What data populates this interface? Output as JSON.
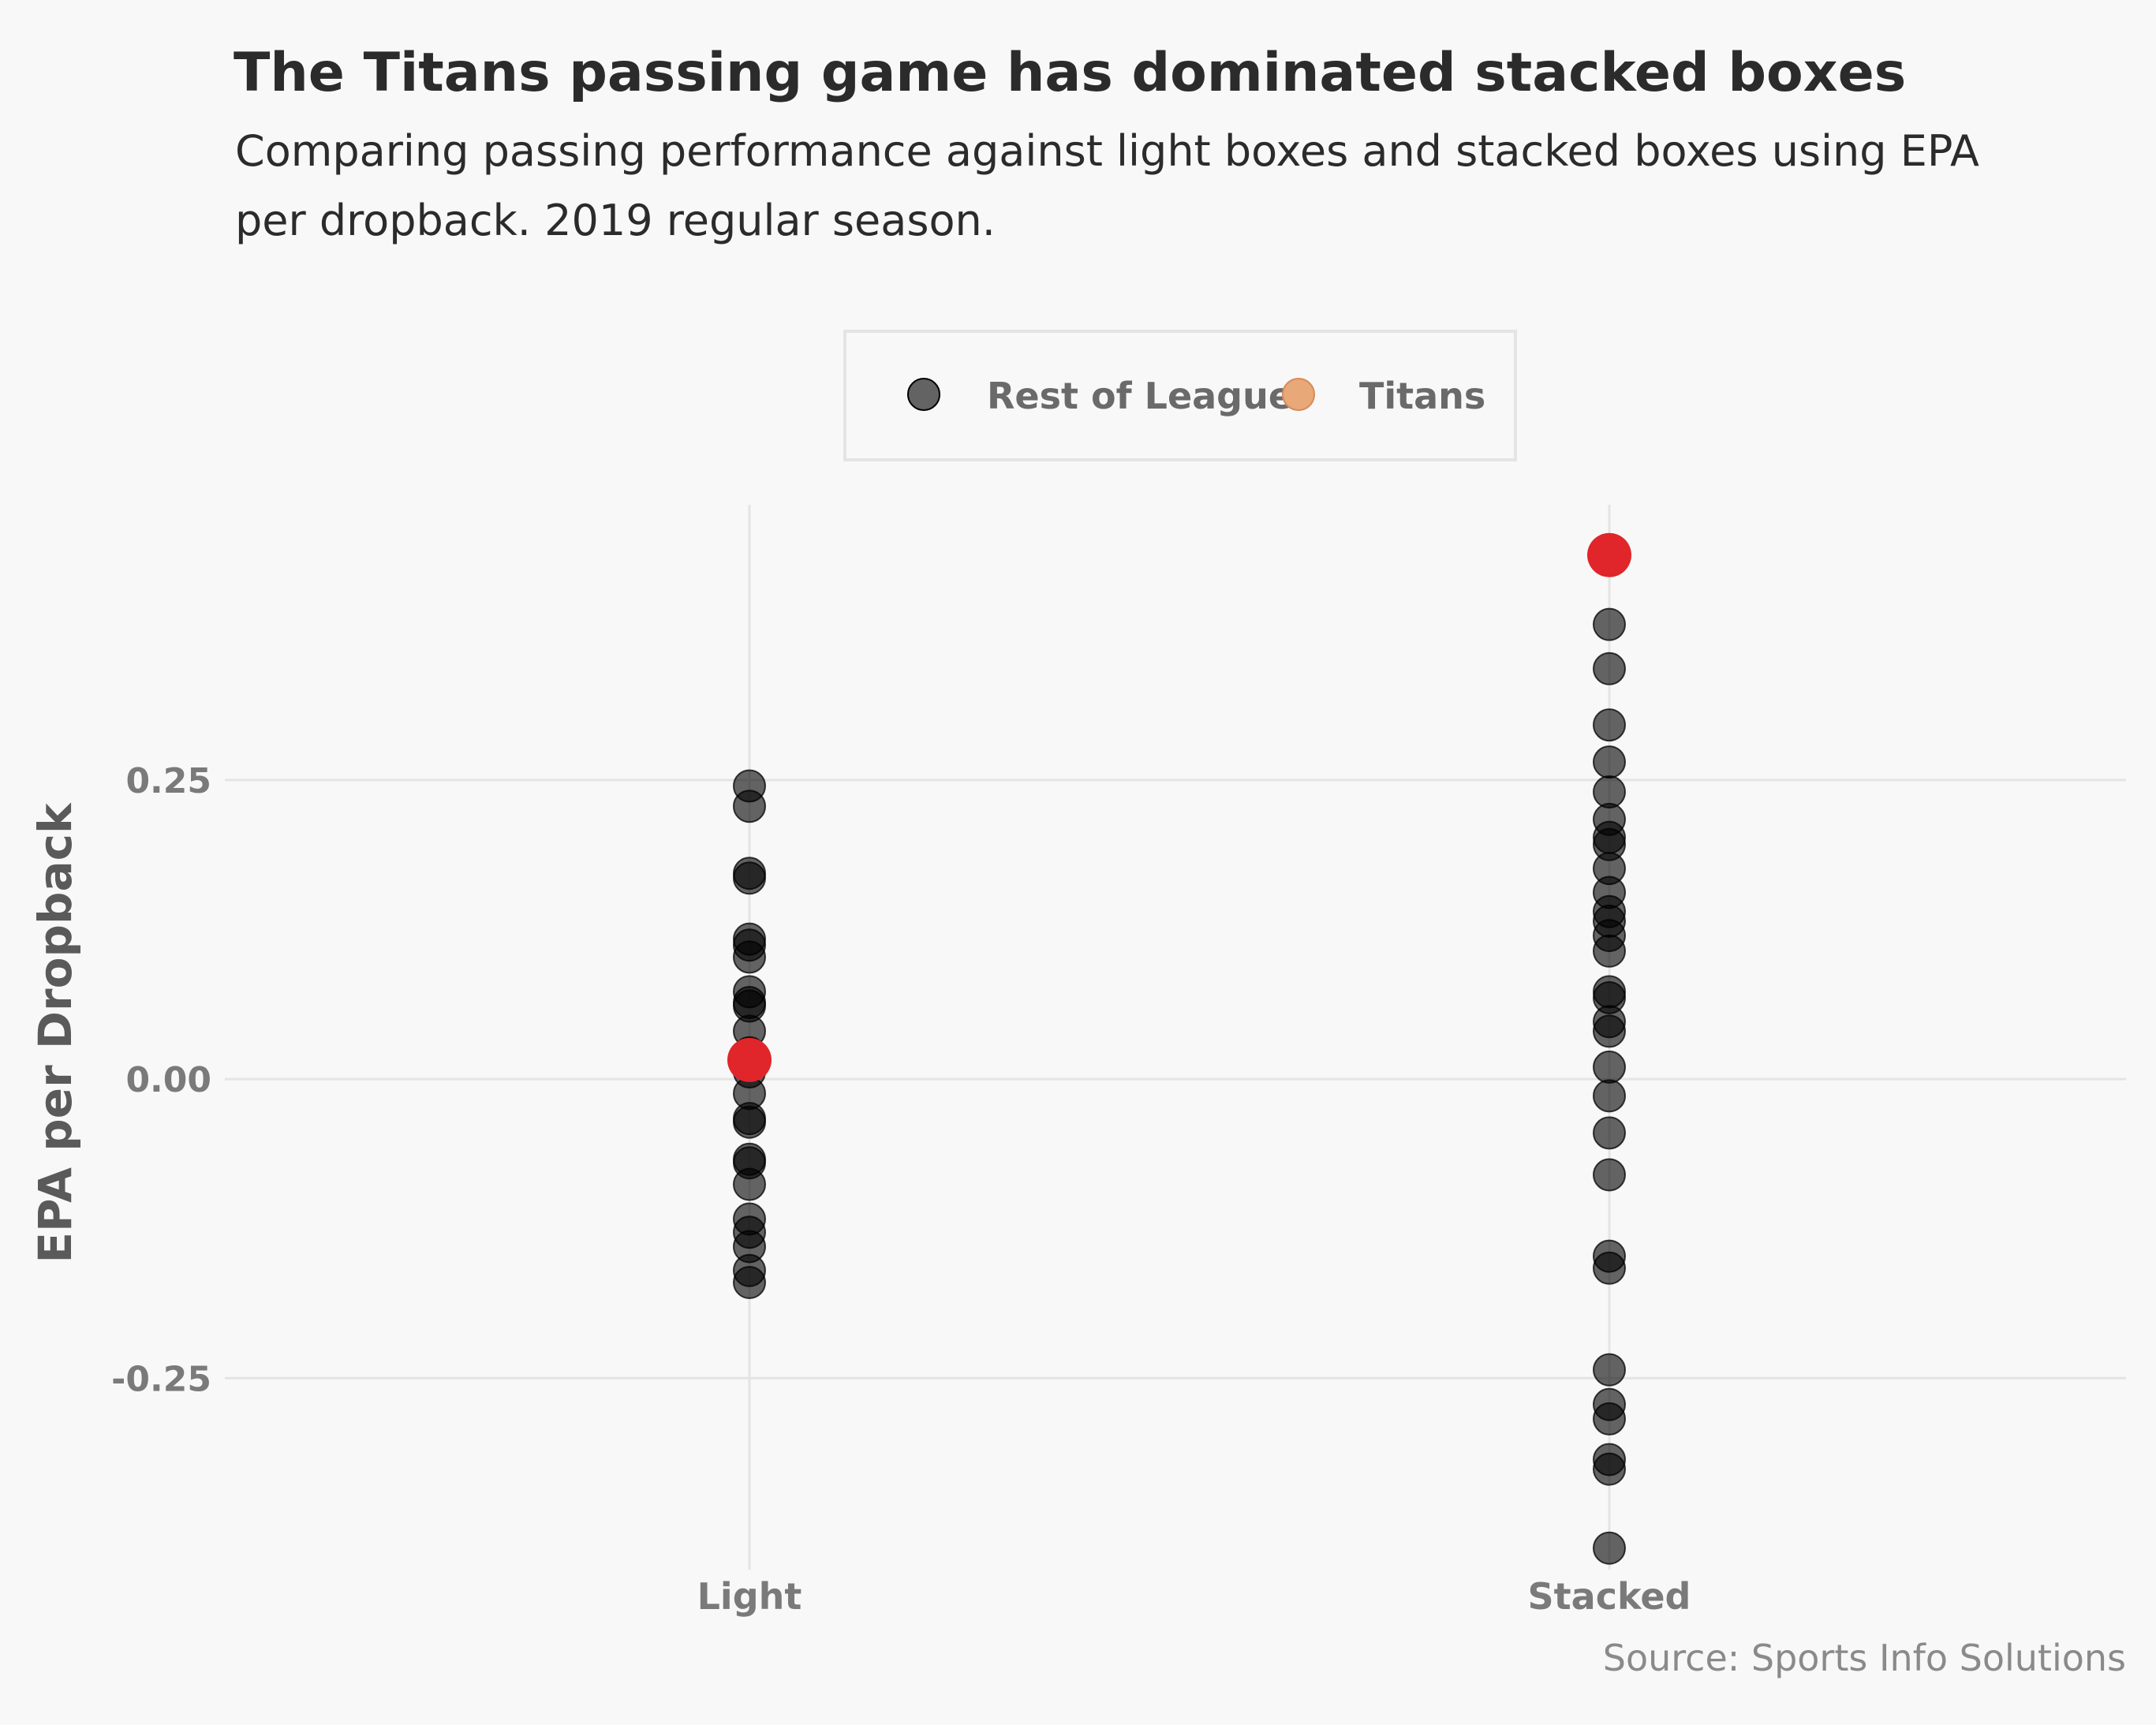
{
  "chart_data": {
    "type": "scatter",
    "title": "The Titans passing game has dominated stacked boxes",
    "subtitle_lines": [
      "Comparing passing performance against light boxes and stacked boxes using EPA",
      "per dropback. 2019 regular season."
    ],
    "ylabel": "EPA per Dropback",
    "caption": "Source: Sports Info Solutions",
    "categories": [
      "Light",
      "Stacked"
    ],
    "ylim": [
      -0.41,
      0.48
    ],
    "yticks": [
      -0.25,
      0.0,
      0.25
    ],
    "ytick_labels": [
      "-0.25",
      "0.00",
      "0.25"
    ],
    "grid": true,
    "legend": {
      "placement": "top-center",
      "entries": [
        {
          "label": "Rest of League",
          "color": "#000000"
        },
        {
          "label": "Titans",
          "color": "#e8a878"
        }
      ]
    },
    "colors": {
      "rest": "#000000",
      "titans_point": "#e0262a",
      "titans_legend": "#e8a878",
      "gridline": "#e4e4e4",
      "background": "#f8f8f8"
    },
    "series": [
      {
        "name": "Rest of League",
        "points": [
          {
            "x": "Light",
            "y": 0.245
          },
          {
            "x": "Light",
            "y": 0.228
          },
          {
            "x": "Light",
            "y": 0.172
          },
          {
            "x": "Light",
            "y": 0.168
          },
          {
            "x": "Light",
            "y": 0.117
          },
          {
            "x": "Light",
            "y": 0.112
          },
          {
            "x": "Light",
            "y": 0.102
          },
          {
            "x": "Light",
            "y": 0.073
          },
          {
            "x": "Light",
            "y": 0.064
          },
          {
            "x": "Light",
            "y": 0.061
          },
          {
            "x": "Light",
            "y": 0.04
          },
          {
            "x": "Light",
            "y": 0.022
          },
          {
            "x": "Light",
            "y": 0.006
          },
          {
            "x": "Light",
            "y": -0.012
          },
          {
            "x": "Light",
            "y": -0.033
          },
          {
            "x": "Light",
            "y": -0.036
          },
          {
            "x": "Light",
            "y": -0.067
          },
          {
            "x": "Light",
            "y": -0.07
          },
          {
            "x": "Light",
            "y": -0.088
          },
          {
            "x": "Light",
            "y": -0.117
          },
          {
            "x": "Light",
            "y": -0.128
          },
          {
            "x": "Light",
            "y": -0.14
          },
          {
            "x": "Light",
            "y": -0.16
          },
          {
            "x": "Light",
            "y": -0.17
          },
          {
            "x": "Stacked",
            "y": 0.38
          },
          {
            "x": "Stacked",
            "y": 0.343
          },
          {
            "x": "Stacked",
            "y": 0.296
          },
          {
            "x": "Stacked",
            "y": 0.265
          },
          {
            "x": "Stacked",
            "y": 0.24
          },
          {
            "x": "Stacked",
            "y": 0.217
          },
          {
            "x": "Stacked",
            "y": 0.202
          },
          {
            "x": "Stacked",
            "y": 0.196
          },
          {
            "x": "Stacked",
            "y": 0.176
          },
          {
            "x": "Stacked",
            "y": 0.156
          },
          {
            "x": "Stacked",
            "y": 0.14
          },
          {
            "x": "Stacked",
            "y": 0.132
          },
          {
            "x": "Stacked",
            "y": 0.12
          },
          {
            "x": "Stacked",
            "y": 0.107
          },
          {
            "x": "Stacked",
            "y": 0.073
          },
          {
            "x": "Stacked",
            "y": 0.068
          },
          {
            "x": "Stacked",
            "y": 0.048
          },
          {
            "x": "Stacked",
            "y": 0.04
          },
          {
            "x": "Stacked",
            "y": 0.01
          },
          {
            "x": "Stacked",
            "y": -0.014
          },
          {
            "x": "Stacked",
            "y": -0.045
          },
          {
            "x": "Stacked",
            "y": -0.08
          },
          {
            "x": "Stacked",
            "y": -0.148
          },
          {
            "x": "Stacked",
            "y": -0.158
          },
          {
            "x": "Stacked",
            "y": -0.243
          },
          {
            "x": "Stacked",
            "y": -0.272
          },
          {
            "x": "Stacked",
            "y": -0.284
          },
          {
            "x": "Stacked",
            "y": -0.318
          },
          {
            "x": "Stacked",
            "y": -0.326
          },
          {
            "x": "Stacked",
            "y": -0.392
          }
        ]
      },
      {
        "name": "Titans",
        "points": [
          {
            "x": "Light",
            "y": 0.016
          },
          {
            "x": "Stacked",
            "y": 0.438
          }
        ]
      }
    ]
  }
}
